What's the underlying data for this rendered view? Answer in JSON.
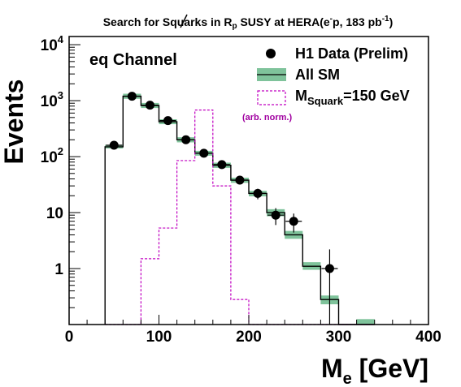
{
  "title": {
    "prefix": "Search for Squarks in ",
    "rp_main": "R",
    "rp_sub": "p",
    "middle": " SUSY at HERA(e",
    "e_sup": "-",
    "after_e": "p, 183 pb",
    "lumi_sup": "-1",
    "suffix": ")"
  },
  "channel_label": "eq Channel",
  "legend": {
    "data": "H1 Data (Prelim)",
    "sm": "All SM",
    "signal_main": "M",
    "signal_sub": "Squark",
    "signal_rest": "=150 GeV",
    "norm_note": "(arb. norm.)"
  },
  "colors": {
    "band": "#7fc39b",
    "signal": "#c000c0",
    "note": "#a000a0",
    "data": "#000000"
  },
  "chart_data": {
    "type": "histogram",
    "xlabel_main": "M",
    "xlabel_sub": "e",
    "xlabel_rest": " [GeV]",
    "ylabel": "Events",
    "xlim": [
      0,
      400
    ],
    "ylim": [
      0.1,
      14000
    ],
    "yscale": "log",
    "grid": false,
    "legend_position": "top-right",
    "x_ticks": [
      0,
      100,
      200,
      300,
      400
    ],
    "y_ticks": [
      {
        "value": 1,
        "base": "1",
        "exp": ""
      },
      {
        "value": 10,
        "base": "10",
        "exp": ""
      },
      {
        "value": 100,
        "base": "10",
        "exp": "2"
      },
      {
        "value": 1000,
        "base": "10",
        "exp": "3"
      },
      {
        "value": 10000,
        "base": "10",
        "exp": "4"
      }
    ],
    "bin_edges": [
      40,
      60,
      80,
      100,
      120,
      140,
      160,
      180,
      200,
      220,
      240,
      260,
      280,
      300,
      320,
      340
    ],
    "series": [
      {
        "name": "All SM",
        "kind": "step-with-band",
        "values": [
          150,
          1200,
          820,
          420,
          200,
          115,
          70,
          38,
          22,
          10,
          4,
          1.1,
          0.28,
          0.1,
          0.1
        ],
        "band_low": [
          140,
          1080,
          740,
          380,
          180,
          104,
          63,
          34,
          19.5,
          8.6,
          3.4,
          0.95,
          0.23,
          0.1,
          0.1
        ],
        "band_high": [
          162,
          1330,
          910,
          465,
          222,
          127,
          78,
          42,
          24.5,
          11.5,
          4.7,
          1.3,
          0.33,
          0.1,
          0.125
        ]
      },
      {
        "name": "M_Squark=150 GeV",
        "kind": "dashed-step",
        "values": [
          0.1,
          0.1,
          1.5,
          5.3,
          85,
          680,
          30,
          0.28,
          0.1,
          0.1,
          0.1,
          0.1,
          0.1,
          0.1,
          0.1
        ]
      },
      {
        "name": "H1 Data (Prelim)",
        "kind": "points",
        "x": [
          50,
          70,
          90,
          110,
          130,
          150,
          170,
          190,
          210,
          230,
          250,
          290
        ],
        "y": [
          160,
          1200,
          830,
          440,
          200,
          115,
          72,
          38,
          22,
          9,
          7,
          1
        ],
        "yerr": [
          13,
          35,
          29,
          21,
          14,
          11,
          8.5,
          6.2,
          4.7,
          3,
          2.6,
          1.2
        ]
      }
    ]
  }
}
